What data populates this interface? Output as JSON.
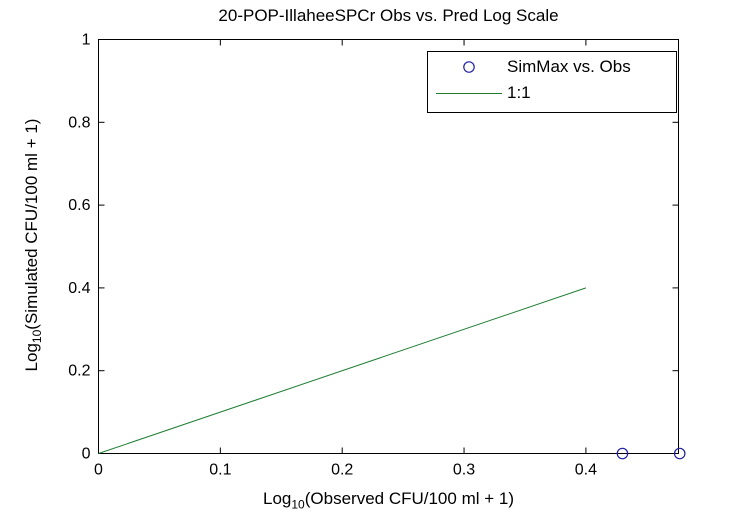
{
  "figure": {
    "background_color": "#ffffff",
    "axis_color": "#000000"
  },
  "chart_data": {
    "type": "scatter",
    "title": "20-POP-IllaheeSPCr Obs vs. Pred Log Scale",
    "xlabel": {
      "main": "Log",
      "sub": "10",
      "rest": "(Observed CFU/100 ml + 1)"
    },
    "ylabel": {
      "main": "Log",
      "sub": "10",
      "rest": "(Simulated CFU/100 ml + 1)"
    },
    "xlim": [
      0,
      0.476
    ],
    "ylim": [
      0,
      1
    ],
    "x_ticks": {
      "values": [
        0,
        0.1,
        0.2,
        0.3,
        0.4
      ],
      "labels": [
        "0",
        "0.1",
        "0.2",
        "0.3",
        "0.4"
      ]
    },
    "y_ticks": {
      "values": [
        0,
        0.2,
        0.4,
        0.6,
        0.8,
        1
      ],
      "labels": [
        "0",
        "0.2",
        "0.4",
        "0.6",
        "0.8",
        "1"
      ]
    },
    "grid": false,
    "box": true,
    "tick_direction": "in",
    "series": [
      {
        "name": "SimMax vs. Obs",
        "type": "scatter",
        "marker": "open-circle",
        "color": "#2020a0",
        "points": [
          [
            0.43,
            0
          ],
          [
            0.477,
            0
          ]
        ]
      },
      {
        "name": "1:1",
        "type": "line",
        "color": "#1e7d32",
        "points": [
          [
            0,
            0
          ],
          [
            0.4,
            0.4
          ]
        ]
      }
    ],
    "legend_position": "top-right"
  },
  "legend": {
    "items": [
      {
        "label": "SimMax vs. Obs",
        "marker": "open-circle",
        "color": "#2020a0"
      },
      {
        "label": "1:1",
        "marker": "line",
        "color": "#1e7d32"
      }
    ]
  }
}
